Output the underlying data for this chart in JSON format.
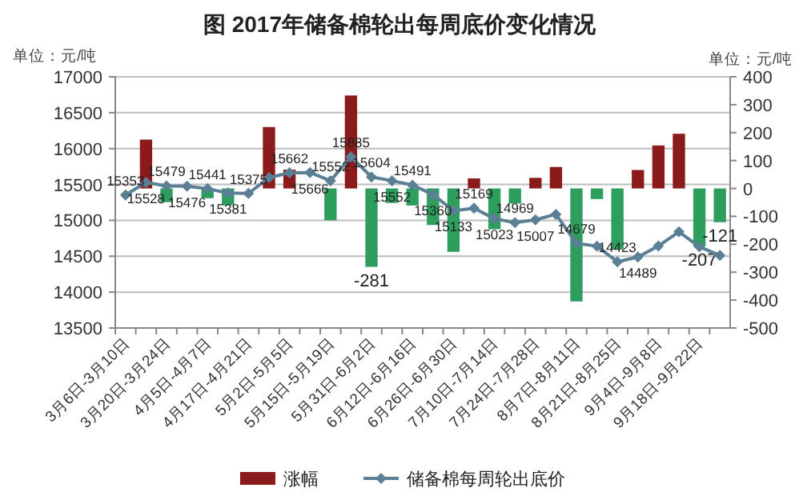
{
  "chart_data": {
    "type": "bar",
    "title": "图  2017年储备棉轮出每周底价变化情况",
    "annotations": [
      "单位：元/吨",
      "单位：元/吨"
    ],
    "categories": [
      "3月6日-3月10日",
      null,
      "3月20日-3月24日",
      null,
      "4月5日-4月7日",
      null,
      "4月17日-4月21日",
      null,
      "5月2日-5月5日",
      null,
      "5月15日-5月19日",
      null,
      "5月31日-6月2日",
      null,
      "6月12日-6月16日",
      null,
      "6月26日-6月30日",
      null,
      "7月10日-7月14日",
      null,
      "7月24日-7月28日",
      null,
      "8月7日-8月11日",
      null,
      "8月21日-8月25日",
      null,
      "9月4日-9月8日",
      null,
      "9月18日-9月22日",
      null
    ],
    "series": [
      {
        "name": "涨幅",
        "axis": "y2",
        "colors": [
          "#8b1a1a",
          "#8b1a1a",
          "#2e9e5e",
          null,
          "#2e9e5e",
          "#2e9e5e",
          null,
          "#8b1a1a",
          "#8b1a1a",
          null,
          "#2e9e5e",
          "#8b1a1a",
          "#2e9e5e",
          "#2e9e5e",
          "#2e9e5e",
          "#2e9e5e",
          "#2e9e5e",
          "#8b1a1a",
          "#2e9e5e",
          "#2e9e5e",
          "#8b1a1a",
          "#8b1a1a",
          "#2e9e5e",
          "#2e9e5e",
          "#2e9e5e",
          "#8b1a1a",
          "#8b1a1a",
          "#8b1a1a",
          "#2e9e5e",
          "#2e9e5e"
        ],
        "values": [
          null,
          175,
          -49,
          null,
          -35,
          -60,
          null,
          220,
          67,
          null,
          -114,
          333,
          -281,
          -52,
          -61,
          -131,
          -227,
          36,
          -146,
          -54,
          38,
          77,
          -405,
          -38,
          -218,
          66,
          154,
          196,
          -207,
          -121
        ],
        "value_labels": [
          null,
          null,
          null,
          null,
          null,
          null,
          null,
          null,
          null,
          null,
          null,
          null,
          "-281",
          null,
          null,
          null,
          null,
          null,
          null,
          null,
          null,
          null,
          null,
          null,
          null,
          null,
          null,
          null,
          "-207",
          "-121"
        ]
      },
      {
        "name": "储备棉每周轮出底价",
        "type": "line",
        "color": "#5b7f95",
        "marker": "diamond",
        "values": [
          15353,
          15528,
          15479,
          15476,
          15441,
          15381,
          15375,
          15595,
          15662,
          15666,
          15552,
          15885,
          15604,
          15552,
          15491,
          15360,
          15133,
          15169,
          15023,
          14969,
          15007,
          15084,
          14679,
          14641,
          14423,
          14489,
          14643,
          14839,
          14632,
          14511
        ],
        "value_labels": [
          "15353",
          "15528",
          "15479",
          "15476",
          "15441",
          "15381",
          "15375",
          null,
          "15662",
          "15666",
          "15552",
          "15885",
          "15604",
          "15552",
          "15491",
          "15360",
          "15133",
          "15169",
          "15023",
          "14969",
          "15007",
          null,
          "14679",
          null,
          "14423",
          "14489",
          null,
          null,
          null,
          null
        ]
      }
    ],
    "ylim": [
      13500,
      17000
    ],
    "yticks": [
      13500,
      14000,
      14500,
      15000,
      15500,
      16000,
      16500,
      17000
    ],
    "y2lim": [
      -500,
      400
    ],
    "y2ticks": [
      -500,
      -400,
      -300,
      -200,
      -100,
      0,
      100,
      200,
      300,
      400
    ],
    "grid": "y",
    "legend": "bottom"
  }
}
